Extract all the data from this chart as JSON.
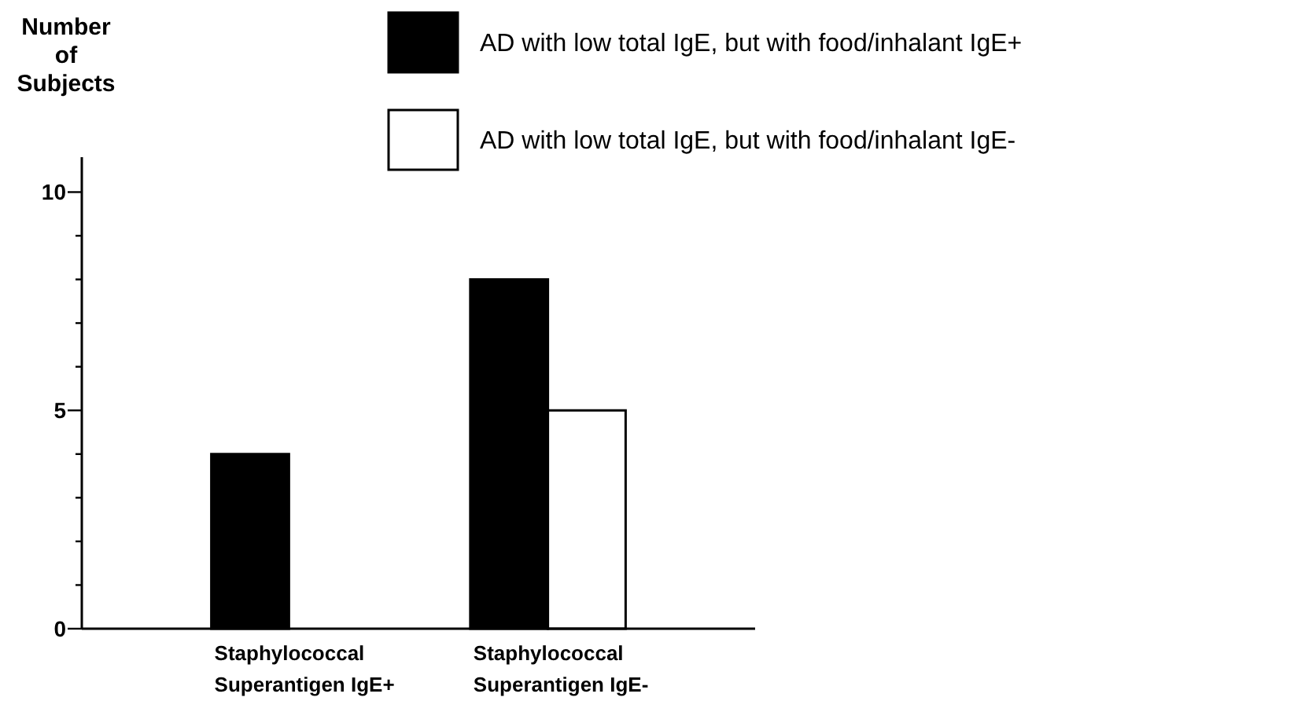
{
  "chart_data": {
    "type": "bar",
    "ylabel": "Number of Subjects",
    "categories": [
      "Staphylococcal Superantigen IgE+",
      "Staphylococcal Superantigen IgE-"
    ],
    "series": [
      {
        "name": "AD with low total IgE, but with food/inhalant IgE+",
        "color": "#000000",
        "values": [
          4,
          8
        ]
      },
      {
        "name": "AD with low total IgE, but with food/inhalant IgE-",
        "color": "#ffffff",
        "values": [
          0,
          5
        ]
      }
    ],
    "ylim": [
      0,
      10.8
    ],
    "yticks": [
      0,
      {
        "value": 1,
        "label": null
      },
      {
        "value": 2,
        "label": null
      },
      {
        "value": 3,
        "label": null
      },
      {
        "value": 4,
        "label": null
      },
      5,
      {
        "value": 6,
        "label": null
      },
      {
        "value": 7,
        "label": null
      },
      {
        "value": 8,
        "label": null
      },
      {
        "value": 9,
        "label": null
      },
      10
    ],
    "legend": "top right",
    "grid": false
  }
}
